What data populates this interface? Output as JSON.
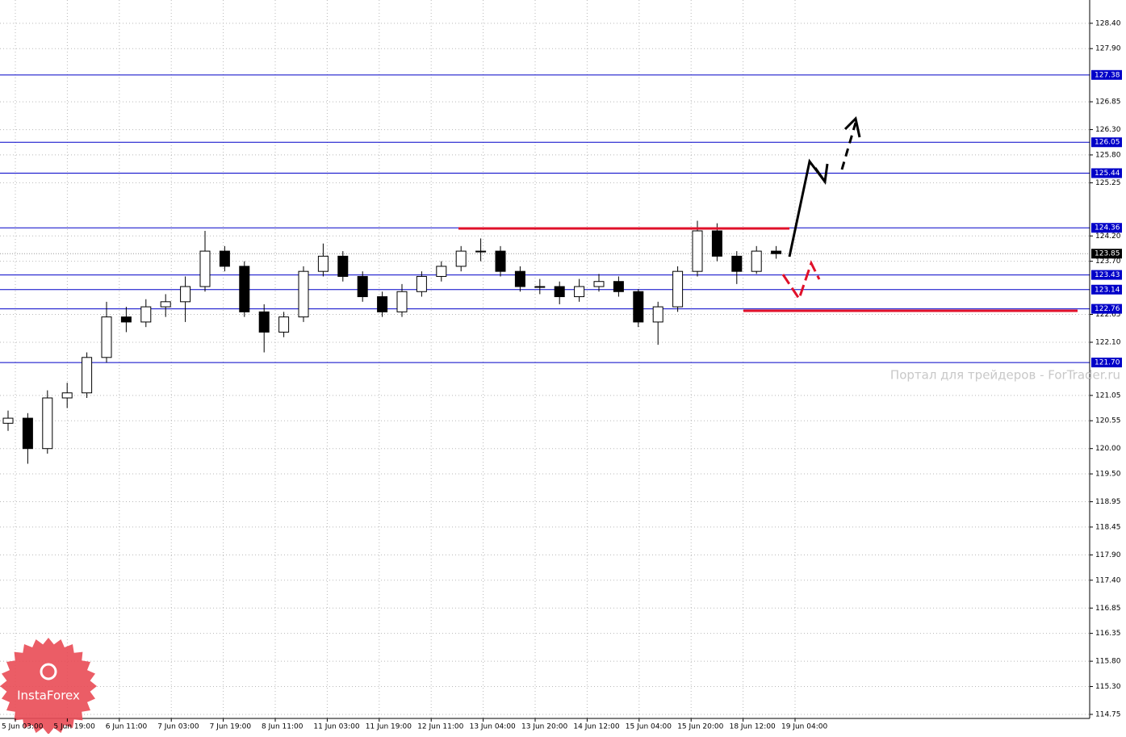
{
  "chart_data": {
    "type": "candlestick",
    "xtick_labels": [
      "5 Jun 03:00",
      "5 Jun 19:00",
      "6 Jun 11:00",
      "7 Jun 03:00",
      "7 Jun 19:00",
      "8 Jun 11:00",
      "11 Jun 03:00",
      "11 Jun 19:00",
      "12 Jun 11:00",
      "13 Jun 04:00",
      "13 Jun 20:00",
      "14 Jun 12:00",
      "15 Jun 04:00",
      "15 Jun 20:00",
      "18 Jun 12:00",
      "19 Jun 04:00"
    ],
    "open": [
      120.5,
      120.6,
      120.0,
      121.0,
      121.1,
      121.8,
      122.6,
      122.5,
      122.8,
      122.9,
      123.2,
      123.9,
      123.6,
      122.7,
      122.3,
      122.6,
      123.5,
      123.8,
      123.4,
      123.0,
      122.7,
      123.1,
      123.4,
      123.6,
      123.9,
      123.9,
      123.5,
      123.2,
      123.2,
      123.0,
      123.2,
      123.3,
      123.1,
      122.5,
      122.8,
      123.5,
      124.3,
      123.8,
      123.5,
      123.9
    ],
    "high": [
      120.75,
      120.7,
      121.15,
      121.3,
      121.9,
      122.9,
      122.8,
      122.95,
      123.05,
      123.4,
      124.3,
      124.0,
      123.7,
      122.85,
      122.7,
      123.6,
      124.05,
      123.9,
      123.5,
      123.1,
      123.25,
      123.5,
      123.7,
      124.0,
      124.15,
      124.0,
      123.6,
      123.35,
      123.3,
      123.35,
      123.45,
      123.4,
      123.15,
      122.9,
      123.6,
      124.5,
      124.45,
      123.9,
      124.0,
      124.0
    ],
    "low": [
      120.35,
      119.7,
      119.9,
      120.8,
      121.0,
      121.7,
      122.3,
      122.4,
      122.6,
      122.5,
      123.1,
      123.5,
      122.6,
      121.9,
      122.2,
      122.5,
      123.4,
      123.3,
      122.9,
      122.6,
      122.6,
      123.0,
      123.3,
      123.5,
      123.7,
      123.4,
      123.1,
      123.05,
      122.85,
      122.9,
      123.1,
      123.0,
      122.4,
      122.05,
      122.7,
      123.4,
      123.7,
      123.25,
      123.45,
      123.75
    ],
    "close": [
      120.6,
      120.0,
      121.0,
      121.1,
      121.8,
      122.6,
      122.5,
      122.8,
      122.9,
      123.2,
      123.9,
      123.6,
      122.7,
      122.3,
      122.6,
      123.5,
      123.8,
      123.4,
      123.0,
      122.7,
      123.1,
      123.4,
      123.6,
      123.9,
      123.9,
      123.5,
      123.2,
      123.2,
      123.0,
      123.2,
      123.3,
      123.1,
      122.5,
      122.8,
      123.5,
      124.3,
      123.8,
      123.5,
      123.9,
      123.85
    ],
    "ylim": [
      114.67,
      128.86
    ],
    "yticks": [
      {
        "value": 128.4,
        "label": "128.40"
      },
      {
        "value": 127.9,
        "label": "127.90"
      },
      {
        "value": 126.85,
        "label": "126.85"
      },
      {
        "value": 126.3,
        "label": "126.30"
      },
      {
        "value": 125.8,
        "label": "125.80"
      },
      {
        "value": 125.25,
        "label": "125.25"
      },
      {
        "value": 124.2,
        "label": "124.20"
      },
      {
        "value": 123.7,
        "label": "123.70"
      },
      {
        "value": 122.65,
        "label": "122.65"
      },
      {
        "value": 122.1,
        "label": "122.10"
      },
      {
        "value": 121.05,
        "label": "121.05"
      },
      {
        "value": 120.55,
        "label": "120.55"
      },
      {
        "value": 120.0,
        "label": "120.00"
      },
      {
        "value": 119.5,
        "label": "119.50"
      },
      {
        "value": 118.95,
        "label": "118.95"
      },
      {
        "value": 118.45,
        "label": "118.45"
      },
      {
        "value": 117.9,
        "label": "117.90"
      },
      {
        "value": 117.4,
        "label": "117.40"
      },
      {
        "value": 116.85,
        "label": "116.85"
      },
      {
        "value": 116.35,
        "label": "116.35"
      },
      {
        "value": 115.8,
        "label": "115.80"
      },
      {
        "value": 115.3,
        "label": "115.30"
      },
      {
        "value": 114.75,
        "label": "114.75"
      }
    ],
    "levels": [
      127.38,
      126.05,
      125.44,
      124.36,
      123.43,
      123.14,
      122.76,
      {
        "value": 121.7,
        "label": "121.70"
      }
    ],
    "level_color": "#0000c8",
    "current_price": 123.85,
    "grid": true,
    "watermark": "Портал для трейдеров - ForTrader.ru",
    "logo": "InstaForex"
  }
}
